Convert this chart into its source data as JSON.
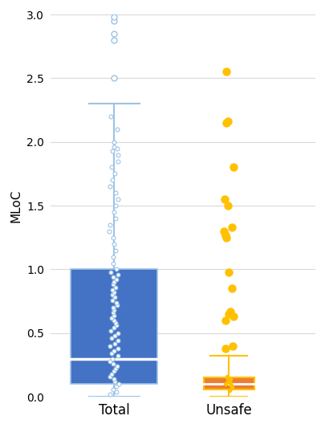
{
  "ylabel": "MLoC",
  "ylim": [
    0.0,
    3.0
  ],
  "yticks": [
    0.0,
    0.5,
    1.0,
    1.5,
    2.0,
    2.5,
    3.0
  ],
  "categories": [
    "Total",
    "Unsafe"
  ],
  "total_box": {
    "q1": 0.1,
    "median": 0.3,
    "q3": 1.0,
    "whisker_low": 0.0,
    "whisker_high": 2.3,
    "box_color": "#4472C4",
    "box_edge_color": "#9DC3E6",
    "whisker_color": "#9DC3E6",
    "dot_color": "#9DC3E6",
    "outliers": [
      2.5,
      2.8,
      2.85,
      2.95,
      2.98
    ],
    "jitter_points": [
      0.02,
      0.04,
      0.06,
      0.08,
      0.1,
      0.12,
      0.14,
      0.16,
      0.18,
      0.2,
      0.22,
      0.24,
      0.26,
      0.28,
      0.3,
      0.32,
      0.34,
      0.36,
      0.38,
      0.4,
      0.42,
      0.44,
      0.46,
      0.48,
      0.5,
      0.52,
      0.54,
      0.56,
      0.58,
      0.6,
      0.62,
      0.64,
      0.66,
      0.68,
      0.7,
      0.72,
      0.74,
      0.76,
      0.78,
      0.8,
      0.82,
      0.84,
      0.86,
      0.88,
      0.9,
      0.92,
      0.94,
      0.96,
      0.98,
      1.0,
      1.05,
      1.1,
      1.15,
      1.2,
      1.25,
      1.3,
      1.35,
      1.4,
      1.45,
      1.5,
      1.55,
      1.6,
      1.65,
      1.7,
      1.75,
      1.8,
      1.85,
      1.9,
      1.95,
      2.0,
      2.1,
      2.2,
      1.93,
      1.96
    ]
  },
  "unsafe_box": {
    "q1": 0.06,
    "median": 0.1,
    "q3": 0.155,
    "whisker_low": 0.0,
    "whisker_high": 0.32,
    "box_color": "#ED7D31",
    "box_edge_color": "#FFC000",
    "whisker_color": "#FFC000",
    "dot_color": "#FFC000",
    "outliers": [
      0.38,
      0.4,
      0.6,
      0.63,
      0.65,
      0.67,
      0.85,
      0.98,
      1.25,
      1.27,
      1.3,
      1.33,
      1.5,
      1.55,
      1.8,
      2.15,
      2.16,
      2.55
    ],
    "jitter_points": [
      0.05,
      0.07,
      0.08,
      0.09,
      0.1,
      0.11,
      0.12,
      0.13,
      0.14,
      0.15,
      0.16
    ]
  },
  "background_color": "#FFFFFF",
  "grid_color": "#D9D9D9"
}
